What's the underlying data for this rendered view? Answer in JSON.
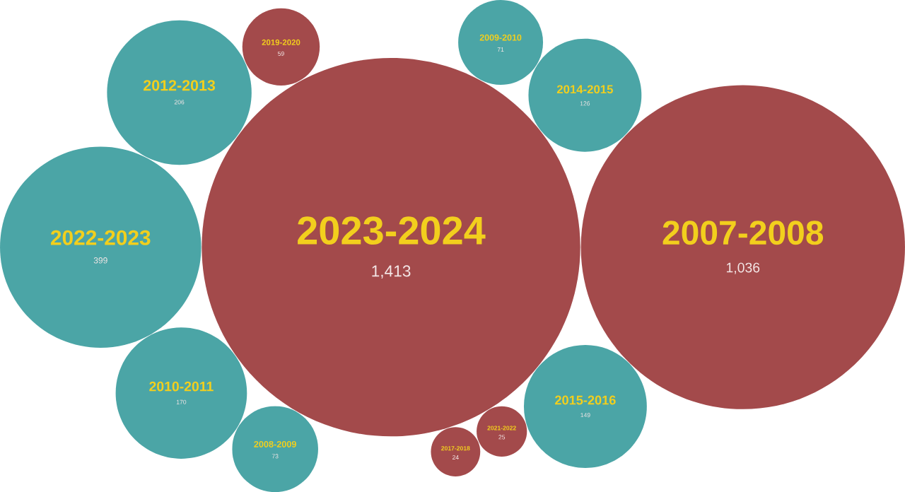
{
  "chart_data": {
    "type": "other",
    "categories": [
      "2023-2024",
      "2007-2008",
      "2022-2023",
      "2012-2013",
      "2010-2011",
      "2015-2016",
      "2014-2015",
      "2008-2009",
      "2009-2010",
      "2019-2020",
      "2021-2022",
      "2017-2018"
    ],
    "values": [
      1413,
      1036,
      399,
      206,
      170,
      149,
      126,
      73,
      71,
      59,
      25,
      24
    ],
    "value_labels": [
      "1,413",
      "1,036",
      "399",
      "206",
      "170",
      "149",
      "126",
      "73",
      "71",
      "59",
      "25",
      "24"
    ],
    "colors": [
      "#a34a4b",
      "#a34a4b",
      "#4ba5a6",
      "#4ba5a6",
      "#4ba5a6",
      "#4ba5a6",
      "#4ba5a6",
      "#4ba5a6",
      "#4ba5a6",
      "#a34a4b",
      "#a34a4b",
      "#a34a4b"
    ]
  }
}
